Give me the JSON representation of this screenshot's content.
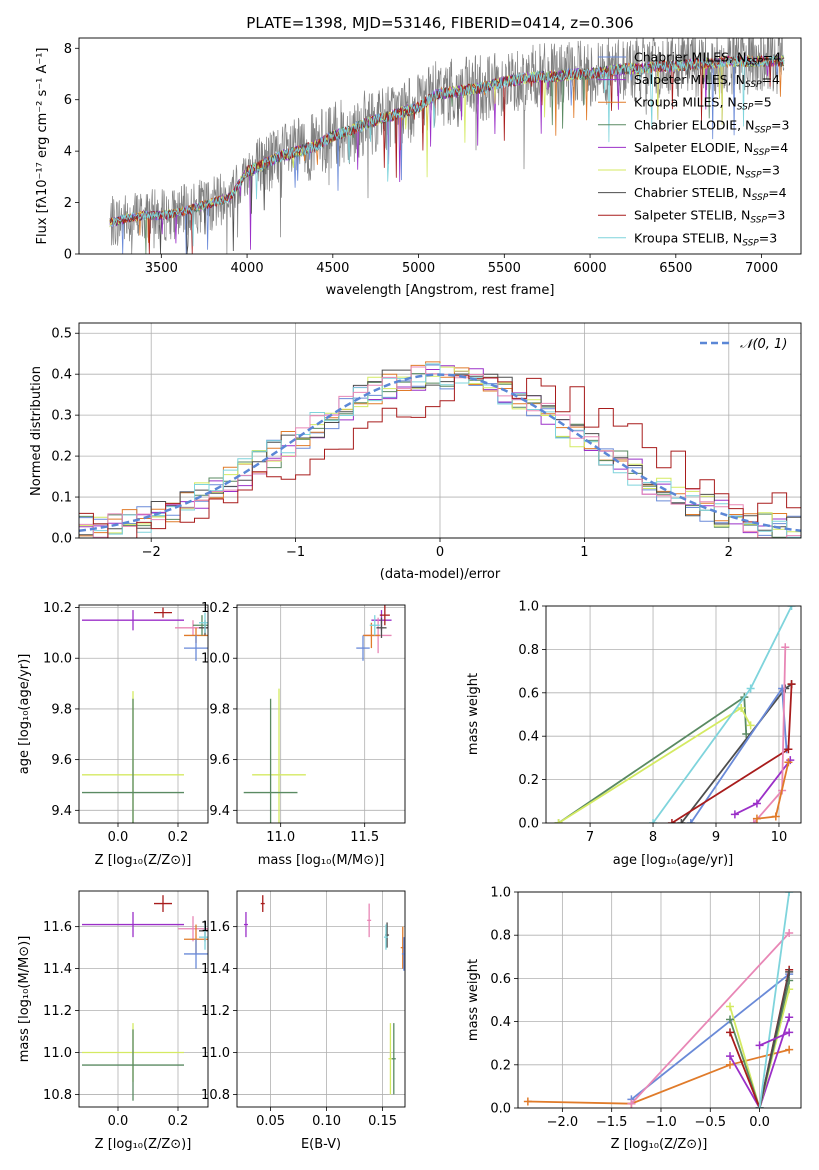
{
  "figure_title": "PLATE=1398, MJD=53146, FIBERID=0414, z=0.306",
  "colors": {
    "Chabrier MILES": "#6a8ad8",
    "Salpeter MILES": "#9b30c8",
    "Kroupa MILES": "#e07b2a",
    "Chabrier ELODIE": "#5a8a62",
    "Salpeter ELODIE": "#9b30c8",
    "Kroupa ELODIE": "#d4ea62",
    "Chabrier STELIB": "#4d4d4d",
    "Salpeter STELIB": "#a81c1c",
    "Kroupa STELIB": "#7fd4dc",
    "pink": "#e887b6",
    "data": "#808080"
  },
  "chart_data": [
    {
      "id": "spectrum",
      "type": "line",
      "title": "PLATE=1398, MJD=53146, FIBERID=0414, z=0.306",
      "xlabel": "wavelength [Angstrom, rest frame]",
      "ylabel": "Flux [fλ10⁻¹⁷ erg cm⁻² s⁻¹ A⁻¹]",
      "xlim": [
        3020,
        7230
      ],
      "ylim": [
        0,
        8.4
      ],
      "xticks": [
        3500,
        4000,
        4500,
        5000,
        5500,
        6000,
        6500,
        7000
      ],
      "yticks": [
        0,
        2,
        4,
        6,
        8
      ],
      "grid": false,
      "legend_position": "upper right",
      "legend": [
        {
          "text": "Chabrier MILES, N",
          "sub": "SSP",
          "tail": "=4",
          "color": "#6a8ad8"
        },
        {
          "text": "Salpeter MILES, N",
          "sub": "SSP",
          "tail": "=4",
          "color": "#9b30c8"
        },
        {
          "text": "Kroupa MILES, N",
          "sub": "SSP",
          "tail": "=5",
          "color": "#e07b2a"
        },
        {
          "text": "Chabrier ELODIE, N",
          "sub": "SSP",
          "tail": "=3",
          "color": "#5a8a62"
        },
        {
          "text": "Salpeter ELODIE, N",
          "sub": "SSP",
          "tail": "=4",
          "color": "#9b30c8"
        },
        {
          "text": "Kroupa ELODIE, N",
          "sub": "SSP",
          "tail": "=3",
          "color": "#d4ea62"
        },
        {
          "text": "Chabrier STELIB, N",
          "sub": "SSP",
          "tail": "=4",
          "color": "#4d4d4d"
        },
        {
          "text": "Salpeter STELIB, N",
          "sub": "SSP",
          "tail": "=3",
          "color": "#a81c1c"
        },
        {
          "text": "Kroupa STELIB, N",
          "sub": "SSP",
          "tail": "=3",
          "color": "#7fd4dc"
        }
      ],
      "continuum": {
        "x": [
          3200,
          3300,
          3400,
          3500,
          3600,
          3700,
          3800,
          3900,
          4000,
          4100,
          4200,
          4300,
          4400,
          4500,
          4600,
          4700,
          4800,
          4900,
          5000,
          5100,
          5200,
          5300,
          5400,
          5500,
          5600,
          5700,
          5800,
          5900,
          6000,
          6100,
          6200,
          6300,
          6400,
          6500,
          6600,
          6700,
          6800,
          6900,
          7000,
          7100
        ],
        "y": [
          1.2,
          1.4,
          1.5,
          1.5,
          1.6,
          1.8,
          2.0,
          2.2,
          3.2,
          3.5,
          3.8,
          4.0,
          4.2,
          4.6,
          4.8,
          5.1,
          5.3,
          5.5,
          5.7,
          6.2,
          6.3,
          6.4,
          6.5,
          6.7,
          6.8,
          6.9,
          6.9,
          7.0,
          7.0,
          7.1,
          7.2,
          7.2,
          7.3,
          7.3,
          7.4,
          7.4,
          7.5,
          7.5,
          7.5,
          7.5
        ]
      }
    },
    {
      "id": "residuals",
      "type": "line",
      "xlabel": "(data-model)/error",
      "ylabel": "Normed distribution",
      "xlim": [
        -2.5,
        2.5
      ],
      "ylim": [
        0,
        0.525
      ],
      "xticks": [
        -2,
        -1,
        0,
        1,
        2
      ],
      "xtick_labels": [
        "−2",
        "−1",
        "0",
        "1",
        "2"
      ],
      "yticks": [
        0,
        0.1,
        0.2,
        0.3,
        0.4,
        0.5
      ],
      "ytick_labels": [
        "0.0",
        "0.1",
        "0.2",
        "0.3",
        "0.4",
        "0.5"
      ],
      "grid": true,
      "legend_position": "upper right",
      "legend_label": "𝒩(0, 1)",
      "gaussian": {
        "mean": 0,
        "sigma": 1,
        "color": "#5b87d6"
      },
      "bin_width": 0.1
    },
    {
      "id": "age-vs-Z",
      "type": "scatter",
      "xlabel": "Z [log₁₀(Z/Z⊙)]",
      "ylabel": "age  [log₁₀(age/yr)]",
      "xlim": [
        -0.13,
        0.3
      ],
      "ylim": [
        9.35,
        10.21
      ],
      "xticks": [
        0.0,
        0.2
      ],
      "xtick_labels": [
        "0.0",
        "0.2"
      ],
      "yticks": [
        9.4,
        9.6,
        9.8,
        10.0,
        10.2
      ],
      "ytick_labels": [
        "9.4",
        "9.6",
        "9.8",
        "10.0",
        "10.2"
      ],
      "points": [
        {
          "x": 0.05,
          "y": 10.15,
          "xerr": 0.17,
          "yerr": 0.04,
          "c": "#9b30c8"
        },
        {
          "x": 0.15,
          "y": 10.18,
          "xerr": 0.03,
          "yerr": 0.02,
          "c": "#a81c1c"
        },
        {
          "x": 0.25,
          "y": 10.12,
          "xerr": 0.06,
          "yerr": 0.03,
          "c": "#e887b6"
        },
        {
          "x": 0.26,
          "y": 10.09,
          "xerr": 0.04,
          "yerr": 0.03,
          "c": "#e07b2a"
        },
        {
          "x": 0.28,
          "y": 10.13,
          "xerr": 0.03,
          "yerr": 0.04,
          "c": "#5a8a62"
        },
        {
          "x": 0.26,
          "y": 10.04,
          "xerr": 0.04,
          "yerr": 0.05,
          "c": "#6a8ad8"
        },
        {
          "x": 0.29,
          "y": 10.12,
          "xerr": 0.02,
          "yerr": 0.03,
          "c": "#4d4d4d"
        },
        {
          "x": 0.29,
          "y": 10.14,
          "xerr": 0.02,
          "yerr": 0.04,
          "c": "#7fd4dc"
        },
        {
          "x": 0.05,
          "y": 9.54,
          "xerr": 0.17,
          "yerr": 0.33,
          "c": "#d4ea62"
        },
        {
          "x": 0.05,
          "y": 9.47,
          "xerr": 0.17,
          "yerr": 0.37,
          "c": "#5a8a62"
        }
      ]
    },
    {
      "id": "age-vs-mass",
      "type": "scatter",
      "xlabel": "mass [log₁₀(M/M⊙)]",
      "ylabel": "",
      "xlim": [
        10.74,
        11.74
      ],
      "ylim": [
        9.35,
        10.21
      ],
      "xticks": [
        11.0,
        11.5
      ],
      "xtick_labels": [
        "11.0",
        "11.5"
      ],
      "yticks": [
        9.4,
        9.6,
        9.8,
        10.0,
        10.2
      ],
      "ytick_labels": [
        "9.4",
        "9.6",
        "9.8",
        "10.0",
        "10.2"
      ],
      "points": [
        {
          "x": 11.6,
          "y": 10.15,
          "xerr": 0.06,
          "yerr": 0.04,
          "c": "#9b30c8"
        },
        {
          "x": 11.62,
          "y": 10.17,
          "xerr": 0.03,
          "yerr": 0.04,
          "c": "#a81c1c"
        },
        {
          "x": 11.58,
          "y": 10.09,
          "xerr": 0.08,
          "yerr": 0.07,
          "c": "#e887b6"
        },
        {
          "x": 11.54,
          "y": 10.09,
          "xerr": 0.05,
          "yerr": 0.05,
          "c": "#e07b2a"
        },
        {
          "x": 11.49,
          "y": 10.04,
          "xerr": 0.04,
          "yerr": 0.05,
          "c": "#6a8ad8"
        },
        {
          "x": 11.6,
          "y": 10.12,
          "xerr": 0.03,
          "yerr": 0.04,
          "c": "#4d4d4d"
        },
        {
          "x": 11.56,
          "y": 10.13,
          "xerr": 0.03,
          "yerr": 0.04,
          "c": "#7fd4dc"
        },
        {
          "x": 10.99,
          "y": 9.54,
          "xerr": 0.16,
          "yerr": 0.34,
          "c": "#d4ea62"
        },
        {
          "x": 10.94,
          "y": 9.47,
          "xerr": 0.16,
          "yerr": 0.37,
          "c": "#5a8a62"
        }
      ]
    },
    {
      "id": "weight-vs-age",
      "type": "line",
      "xlabel": "age  [log₁₀(age/yr)]",
      "ylabel": "mass weight",
      "xlim": [
        6.3,
        10.35
      ],
      "ylim": [
        0,
        1.0
      ],
      "xticks": [
        7,
        8,
        9,
        10
      ],
      "xtick_labels": [
        "7",
        "8",
        "9",
        "10"
      ],
      "yticks": [
        0,
        0.2,
        0.4,
        0.6,
        0.8,
        1.0
      ],
      "ytick_labels": [
        "0.0",
        "0.2",
        "0.4",
        "0.6",
        "0.8",
        "1.0"
      ],
      "grid": true,
      "series": [
        {
          "c": "#5a8a62",
          "x": [
            6.5,
            9.45,
            9.48
          ],
          "y": [
            0,
            0.58,
            0.41
          ]
        },
        {
          "c": "#d4ea62",
          "x": [
            6.5,
            9.4,
            9.55
          ],
          "y": [
            0,
            0.53,
            0.45
          ]
        },
        {
          "c": "#7fd4dc",
          "x": [
            8.0,
            9.55,
            10.2
          ],
          "y": [
            0,
            0.62,
            1.0
          ]
        },
        {
          "c": "#4d4d4d",
          "x": [
            8.45,
            10.1,
            10.2
          ],
          "y": [
            0,
            0.62,
            0.64
          ]
        },
        {
          "c": "#6a8ad8",
          "x": [
            8.6,
            10.05,
            10.12
          ],
          "y": [
            0,
            0.62,
            0.34
          ]
        },
        {
          "c": "#a81c1c",
          "x": [
            8.3,
            10.15,
            10.2
          ],
          "y": [
            0,
            0.34,
            0.64
          ]
        },
        {
          "c": "#9b30c8",
          "x": [
            9.3,
            9.65,
            10.18
          ],
          "y": [
            0.04,
            0.09,
            0.29
          ]
        },
        {
          "c": "#e887b6",
          "x": [
            9.6,
            10.05,
            10.1
          ],
          "y": [
            0,
            0.15,
            0.81
          ]
        },
        {
          "c": "#e07b2a",
          "x": [
            9.65,
            9.95,
            10.15
          ],
          "y": [
            0.02,
            0.03,
            0.28
          ]
        }
      ]
    },
    {
      "id": "mass-vs-Z",
      "type": "scatter",
      "xlabel": "Z [log₁₀(Z/Z⊙)]",
      "ylabel": "mass [log₁₀(M/M⊙)]",
      "xlim": [
        -0.13,
        0.3
      ],
      "ylim": [
        10.74,
        11.77
      ],
      "xticks": [
        0.0,
        0.2
      ],
      "xtick_labels": [
        "0.0",
        "0.2"
      ],
      "yticks": [
        10.8,
        11.0,
        11.2,
        11.4,
        11.6
      ],
      "ytick_labels": [
        "10.8",
        "11.0",
        "11.2",
        "11.4",
        "11.6"
      ],
      "points": [
        {
          "x": 0.05,
          "y": 11.61,
          "xerr": 0.17,
          "yerr": 0.06,
          "c": "#9b30c8"
        },
        {
          "x": 0.15,
          "y": 11.71,
          "xerr": 0.03,
          "yerr": 0.04,
          "c": "#a81c1c"
        },
        {
          "x": 0.25,
          "y": 11.59,
          "xerr": 0.05,
          "yerr": 0.06,
          "c": "#e887b6"
        },
        {
          "x": 0.26,
          "y": 11.54,
          "xerr": 0.04,
          "yerr": 0.07,
          "c": "#e07b2a"
        },
        {
          "x": 0.26,
          "y": 11.47,
          "xerr": 0.04,
          "yerr": 0.07,
          "c": "#6a8ad8"
        },
        {
          "x": 0.29,
          "y": 11.58,
          "xerr": 0.02,
          "yerr": 0.05,
          "c": "#4d4d4d"
        },
        {
          "x": 0.29,
          "y": 11.55,
          "xerr": 0.02,
          "yerr": 0.06,
          "c": "#7fd4dc"
        },
        {
          "x": 0.05,
          "y": 11.0,
          "xerr": 0.17,
          "yerr": 0.14,
          "c": "#d4ea62"
        },
        {
          "x": 0.05,
          "y": 10.94,
          "xerr": 0.17,
          "yerr": 0.17,
          "c": "#5a8a62"
        }
      ]
    },
    {
      "id": "mass-vs-EBV",
      "type": "scatter",
      "xlabel": "E(B-V)",
      "ylabel": "",
      "xlim": [
        0.02,
        0.17
      ],
      "ylim": [
        10.74,
        11.77
      ],
      "xticks": [
        0.05,
        0.1,
        0.15
      ],
      "xtick_labels": [
        "0.05",
        "0.10",
        "0.15"
      ],
      "yticks": [
        10.8,
        11.0,
        11.2,
        11.4,
        11.6
      ],
      "ytick_labels": [
        "10.8",
        "11.0",
        "11.2",
        "11.4",
        "11.6"
      ],
      "points": [
        {
          "x": 0.028,
          "y": 11.61,
          "yerr": 0.06,
          "c": "#9b30c8"
        },
        {
          "x": 0.043,
          "y": 11.71,
          "yerr": 0.04,
          "c": "#a81c1c"
        },
        {
          "x": 0.138,
          "y": 11.63,
          "yerr": 0.08,
          "c": "#e887b6"
        },
        {
          "x": 0.168,
          "y": 11.5,
          "yerr": 0.1,
          "c": "#e07b2a"
        },
        {
          "x": 0.169,
          "y": 11.47,
          "yerr": 0.08,
          "c": "#6a8ad8"
        },
        {
          "x": 0.154,
          "y": 11.56,
          "yerr": 0.06,
          "c": "#4d4d4d"
        },
        {
          "x": 0.153,
          "y": 11.55,
          "yerr": 0.06,
          "c": "#7fd4dc"
        },
        {
          "x": 0.157,
          "y": 10.97,
          "yerr": 0.17,
          "c": "#d4ea62"
        },
        {
          "x": 0.16,
          "y": 10.97,
          "yerr": 0.17,
          "c": "#5a8a62"
        }
      ]
    },
    {
      "id": "weight-vs-Z",
      "type": "line",
      "xlabel": "Z [log₁₀(Z/Z⊙)]",
      "ylabel": "mass weight",
      "xlim": [
        -2.45,
        0.42
      ],
      "ylim": [
        0,
        1.0
      ],
      "xticks": [
        -2.0,
        -1.5,
        -1.0,
        -0.5,
        0.0,
        0.5
      ],
      "xtick_labels": [
        "−2.0",
        "−1.5",
        "−1.0",
        "−0.5",
        "0.0",
        "0.5"
      ],
      "yticks": [
        0,
        0.2,
        0.4,
        0.6,
        0.8,
        1.0
      ],
      "ytick_labels": [
        "0.0",
        "0.2",
        "0.4",
        "0.6",
        "0.8",
        "1.0"
      ],
      "grid": true,
      "series": [
        {
          "c": "#e07b2a",
          "x": [
            -2.35,
            -1.3,
            -0.3,
            0.3
          ],
          "y": [
            0.03,
            0.02,
            0.2,
            0.27
          ]
        },
        {
          "c": "#6a8ad8",
          "x": [
            -1.3,
            0.3
          ],
          "y": [
            0.04,
            0.62
          ]
        },
        {
          "c": "#e887b6",
          "x": [
            -1.3,
            0.3
          ],
          "y": [
            0.02,
            0.81
          ]
        },
        {
          "c": "#9b30c8",
          "x": [
            -0.3,
            0.0,
            0.3
          ],
          "y": [
            0.24,
            0.0,
            0.42
          ]
        },
        {
          "c": "#d4ea62",
          "x": [
            -0.3,
            0.0,
            0.3
          ],
          "y": [
            0.47,
            0.0,
            0.55
          ]
        },
        {
          "c": "#5a8a62",
          "x": [
            -0.3,
            0.0,
            0.3
          ],
          "y": [
            0.41,
            0.0,
            0.59
          ]
        },
        {
          "c": "#a81c1c",
          "x": [
            -0.3,
            0.0,
            0.3
          ],
          "y": [
            0.35,
            0.0,
            0.64
          ]
        },
        {
          "c": "#4d4d4d",
          "x": [
            0.0,
            0.3
          ],
          "y": [
            0.0,
            0.63
          ]
        },
        {
          "c": "#7fd4dc",
          "x": [
            0.0,
            0.3
          ],
          "y": [
            0.0,
            1.0
          ]
        },
        {
          "c": "#9b30c8",
          "x": [
            0.0,
            0.3
          ],
          "y": [
            0.29,
            0.35
          ]
        }
      ]
    }
  ]
}
